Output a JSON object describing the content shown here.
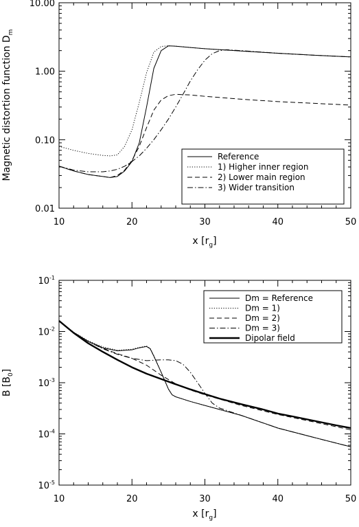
{
  "chart_data": [
    {
      "type": "line",
      "ylabel": "Magnetic distortion function D",
      "ylabel_sub": "m",
      "xlabel": "x [r",
      "xlabel_sub": "g",
      "xlabel_close": "]",
      "xlim": [
        10,
        50
      ],
      "ylim": [
        0.01,
        10
      ],
      "yscale": "log",
      "x_ticks": [
        10,
        20,
        30,
        40,
        50
      ],
      "x_tick_labels": [
        "10",
        "20",
        "30",
        "40",
        "50"
      ],
      "y_ticks": [
        0.01,
        0.1,
        1,
        10
      ],
      "y_tick_labels": [
        "0.01",
        "0.10",
        "1.00",
        "10.00"
      ],
      "legend_position": "bottom-right",
      "series": [
        {
          "name": "Reference",
          "style": "solid",
          "width": 1,
          "x": [
            10,
            12,
            14,
            16,
            17,
            18,
            19,
            20,
            21,
            22,
            23,
            24,
            25,
            26,
            28,
            30,
            35,
            40,
            45,
            50
          ],
          "y": [
            0.041,
            0.035,
            0.031,
            0.029,
            0.028,
            0.029,
            0.035,
            0.048,
            0.09,
            0.3,
            1.1,
            2.0,
            2.35,
            2.32,
            2.22,
            2.13,
            1.97,
            1.83,
            1.71,
            1.62
          ]
        },
        {
          "name": "1) Higher inner region",
          "style": "dotted",
          "width": 1,
          "x": [
            10,
            12,
            14,
            16,
            17,
            18,
            19,
            20,
            21,
            22,
            23,
            24,
            25,
            26,
            28,
            30,
            35,
            40,
            45,
            50
          ],
          "y": [
            0.08,
            0.07,
            0.063,
            0.059,
            0.058,
            0.06,
            0.08,
            0.14,
            0.35,
            0.95,
            1.9,
            2.3,
            2.35,
            2.32,
            2.22,
            2.13,
            1.97,
            1.83,
            1.71,
            1.62
          ]
        },
        {
          "name": "2) Lower main region",
          "style": "dashed",
          "width": 1,
          "x": [
            10,
            12,
            14,
            16,
            17,
            18,
            19,
            20,
            21,
            22,
            23,
            24,
            25,
            26,
            28,
            30,
            35,
            40,
            45,
            50
          ],
          "y": [
            0.041,
            0.035,
            0.031,
            0.029,
            0.028,
            0.03,
            0.036,
            0.05,
            0.08,
            0.15,
            0.27,
            0.38,
            0.44,
            0.46,
            0.45,
            0.43,
            0.39,
            0.36,
            0.34,
            0.32
          ]
        },
        {
          "name": "3) Wider transition",
          "style": "dashdot",
          "width": 1,
          "x": [
            10,
            12,
            14,
            16,
            17,
            18,
            19,
            20,
            21,
            22,
            23,
            24,
            25,
            26,
            27,
            28,
            29,
            30,
            31,
            32,
            33,
            35,
            40,
            45,
            50
          ],
          "y": [
            0.041,
            0.036,
            0.034,
            0.034,
            0.035,
            0.037,
            0.041,
            0.048,
            0.058,
            0.075,
            0.1,
            0.14,
            0.2,
            0.3,
            0.46,
            0.72,
            1.05,
            1.45,
            1.8,
            2.0,
            2.06,
            2.0,
            1.83,
            1.71,
            1.62
          ]
        }
      ]
    },
    {
      "type": "line",
      "ylabel": "B [B",
      "ylabel_sub": "0",
      "ylabel_close": "]",
      "xlabel": "x [r",
      "xlabel_sub": "g",
      "xlabel_close": "]",
      "xlim": [
        10,
        50
      ],
      "ylim": [
        1e-05,
        0.1
      ],
      "yscale": "log",
      "x_ticks": [
        10,
        20,
        30,
        40,
        50
      ],
      "x_tick_labels": [
        "10",
        "20",
        "30",
        "40",
        "50"
      ],
      "y_ticks": [
        1e-05,
        0.0001,
        0.001,
        0.01,
        0.1
      ],
      "y_tick_base": "10",
      "y_tick_exponents": [
        "-5",
        "-4",
        "-3",
        "-2",
        "-1"
      ],
      "legend_position": "top-right",
      "series": [
        {
          "name": "Dm = Reference",
          "style": "solid",
          "width": 1,
          "x": [
            10,
            12,
            14,
            16,
            18,
            20,
            21,
            22,
            22.5,
            23,
            24,
            25,
            25.5,
            26,
            28,
            30,
            35,
            40,
            45,
            50
          ],
          "y": [
            0.0162,
            0.0096,
            0.0064,
            0.0048,
            0.0042,
            0.0044,
            0.0048,
            0.0051,
            0.0046,
            0.0033,
            0.0016,
            0.00075,
            0.00058,
            0.00053,
            0.00043,
            0.00036,
            0.00023,
            0.00013,
            8.5e-05,
            5.6e-05
          ]
        },
        {
          "name": "Dm = 1)",
          "style": "dotted",
          "width": 1,
          "x": [
            10,
            12,
            14,
            16,
            18,
            20,
            21,
            22,
            22.5,
            23,
            24,
            25,
            25.5,
            26,
            28,
            30,
            35,
            40,
            45,
            50
          ],
          "y": [
            0.0162,
            0.0097,
            0.0066,
            0.005,
            0.0043,
            0.0045,
            0.0049,
            0.0052,
            0.0047,
            0.0034,
            0.0016,
            0.00075,
            0.00058,
            0.00053,
            0.00043,
            0.00036,
            0.00023,
            0.00013,
            8.5e-05,
            5.6e-05
          ]
        },
        {
          "name": "Dm = 2)",
          "style": "dashed",
          "width": 1,
          "x": [
            10,
            12,
            14,
            16,
            18,
            20,
            22,
            24,
            26,
            28,
            30,
            35,
            40,
            45,
            50
          ],
          "y": [
            0.0162,
            0.0096,
            0.0064,
            0.0047,
            0.0037,
            0.003,
            0.0022,
            0.0014,
            0.00095,
            0.00072,
            0.00058,
            0.00036,
            0.00024,
            0.00017,
            0.00012
          ]
        },
        {
          "name": "Dm = 3)",
          "style": "dashdot",
          "width": 1,
          "x": [
            10,
            12,
            14,
            16,
            18,
            20,
            22,
            24,
            25,
            26,
            27,
            28,
            29,
            30,
            31,
            32,
            35,
            40,
            45,
            50
          ],
          "y": [
            0.0162,
            0.0096,
            0.0064,
            0.0046,
            0.0036,
            0.003,
            0.0027,
            0.0028,
            0.0028,
            0.0027,
            0.0023,
            0.0016,
            0.001,
            0.00062,
            0.0004,
            0.00032,
            0.00023,
            0.00013,
            8.5e-05,
            5.6e-05
          ]
        },
        {
          "name": "Dipolar field",
          "style": "solid",
          "width": 2.4,
          "x": [
            10,
            12,
            14,
            16,
            18,
            20,
            22,
            24,
            26,
            28,
            30,
            32,
            35,
            38,
            40,
            42,
            45,
            48,
            50
          ],
          "y": [
            0.0162,
            0.0094,
            0.0059,
            0.004,
            0.0028,
            0.002,
            0.0015,
            0.00118,
            0.00093,
            0.00074,
            0.0006,
            0.00049,
            0.00038,
            0.0003,
            0.00025,
            0.00022,
            0.00018,
            0.000147,
            0.00013
          ]
        }
      ]
    }
  ]
}
